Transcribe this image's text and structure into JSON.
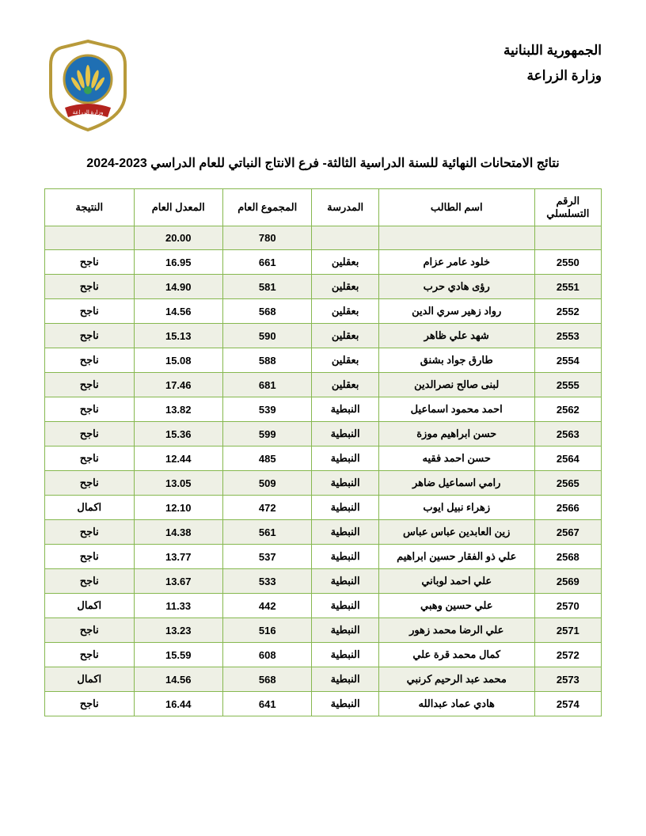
{
  "header": {
    "line1": "الجمهورية اللبنانية",
    "line2": "وزارة الزراعة"
  },
  "logo": {
    "shield_stroke": "#b89a3a",
    "shield_fill": "#ffffff",
    "circle_fill": "#1f6fb3",
    "wheat_fill": "#e7c54a",
    "banner_fill": "#b4231e",
    "banner_text": "وزارة الزراعة"
  },
  "title": "نتائج الامتحانات النهائية للسنة الدراسية الثالثة- فرع الانتاج النباتي للعام الدراسي 2023-2024",
  "columns": {
    "id": "الرقم التسلسلي",
    "name": "اسم الطالب",
    "school": "المدرسة",
    "total": "المجموع العام",
    "average": "المعدل العام",
    "result": "النتيجة"
  },
  "summary": {
    "total": "780",
    "average": "20.00"
  },
  "rows": [
    {
      "id": "2550",
      "name": "خلود عامر عزام",
      "school": "بعقلين",
      "total": "661",
      "avg": "16.95",
      "result": "ناجح"
    },
    {
      "id": "2551",
      "name": "رؤى هادي حرب",
      "school": "بعقلين",
      "total": "581",
      "avg": "14.90",
      "result": "ناجح"
    },
    {
      "id": "2552",
      "name": "رواد زهير سري الدين",
      "school": "بعقلين",
      "total": "568",
      "avg": "14.56",
      "result": "ناجح"
    },
    {
      "id": "2553",
      "name": "شهد علي ظاهر",
      "school": "بعقلين",
      "total": "590",
      "avg": "15.13",
      "result": "ناجح"
    },
    {
      "id": "2554",
      "name": "طارق جواد بشنق",
      "school": "بعقلين",
      "total": "588",
      "avg": "15.08",
      "result": "ناجح"
    },
    {
      "id": "2555",
      "name": "لبنى صالح نصرالدين",
      "school": "بعقلين",
      "total": "681",
      "avg": "17.46",
      "result": "ناجح"
    },
    {
      "id": "2562",
      "name": "احمد محمود اسماعيل",
      "school": "النبطية",
      "total": "539",
      "avg": "13.82",
      "result": "ناجح"
    },
    {
      "id": "2563",
      "name": "حسن ابراهيم موزة",
      "school": "النبطية",
      "total": "599",
      "avg": "15.36",
      "result": "ناجح"
    },
    {
      "id": "2564",
      "name": "حسن احمد فقيه",
      "school": "النبطية",
      "total": "485",
      "avg": "12.44",
      "result": "ناجح"
    },
    {
      "id": "2565",
      "name": "رامي اسماعيل ضاهر",
      "school": "النبطية",
      "total": "509",
      "avg": "13.05",
      "result": "ناجح"
    },
    {
      "id": "2566",
      "name": "زهراء نبيل ايوب",
      "school": "النبطية",
      "total": "472",
      "avg": "12.10",
      "result": "اكمال"
    },
    {
      "id": "2567",
      "name": "زين العابدين عباس عباس",
      "school": "النبطية",
      "total": "561",
      "avg": "14.38",
      "result": "ناجح"
    },
    {
      "id": "2568",
      "name": "علي ذو الفقار حسين ابراهيم",
      "school": "النبطية",
      "total": "537",
      "avg": "13.77",
      "result": "ناجح"
    },
    {
      "id": "2569",
      "name": "علي احمد لوباني",
      "school": "النبطية",
      "total": "533",
      "avg": "13.67",
      "result": "ناجح"
    },
    {
      "id": "2570",
      "name": "علي حسين وهبي",
      "school": "النبطية",
      "total": "442",
      "avg": "11.33",
      "result": "اكمال"
    },
    {
      "id": "2571",
      "name": "علي الرضا محمد زهور",
      "school": "النبطية",
      "total": "516",
      "avg": "13.23",
      "result": "ناجح"
    },
    {
      "id": "2572",
      "name": "كمال محمد قرة علي",
      "school": "النبطية",
      "total": "608",
      "avg": "15.59",
      "result": "ناجح"
    },
    {
      "id": "2573",
      "name": "محمد عبد الرحيم كرنبي",
      "school": "النبطية",
      "total": "568",
      "avg": "14.56",
      "result": "اكمال"
    },
    {
      "id": "2574",
      "name": "هادي عماد عبدالله",
      "school": "النبطية",
      "total": "641",
      "avg": "16.44",
      "result": "ناجح"
    }
  ],
  "style": {
    "border_color": "#86b84f",
    "alt_row_bg": "#eef0e5",
    "page_bg": "#ffffff",
    "text_color": "#000000",
    "header_fontsize": 17,
    "title_fontsize": 16,
    "cell_fontsize": 13
  }
}
